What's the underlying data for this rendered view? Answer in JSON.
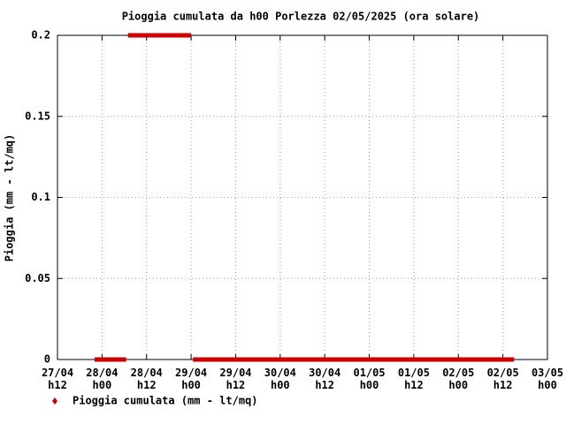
{
  "chart_data": {
    "type": "line",
    "title": "Pioggia cumulata da h00  Porlezza 02/05/2025 (ora solare)",
    "y_label": "Pioggia (mm - lt/mq)",
    "x": [
      22,
      30.5,
      30.7,
      31,
      48,
      48.3,
      48.5,
      135
    ],
    "series": [
      {
        "name": "Pioggia cumulata (mm - lt/mq)",
        "color": "#cc0000",
        "values": [
          0,
          0,
          null,
          0.2,
          0.2,
          null,
          0,
          0
        ]
      }
    ],
    "xlim": [
      12,
      144
    ],
    "xticks": [
      {
        "value": 12,
        "label": "27/04 h12"
      },
      {
        "value": 24,
        "label": "28/04 h00"
      },
      {
        "value": 36,
        "label": "28/04 h12"
      },
      {
        "value": 48,
        "label": "29/04 h00"
      },
      {
        "value": 60,
        "label": "29/04 h12"
      },
      {
        "value": 72,
        "label": "30/04 h00"
      },
      {
        "value": 84,
        "label": "30/04 h12"
      },
      {
        "value": 96,
        "label": "01/05 h00"
      },
      {
        "value": 108,
        "label": "01/05 h12"
      },
      {
        "value": 120,
        "label": "02/05 h00"
      },
      {
        "value": 132,
        "label": "02/05 h12"
      },
      {
        "value": 144,
        "label": "03/05 h00"
      }
    ],
    "ylim": [
      0,
      0.2
    ],
    "yticks": [
      0,
      0.05,
      0.1,
      0.15,
      0.2
    ],
    "grid": true
  }
}
